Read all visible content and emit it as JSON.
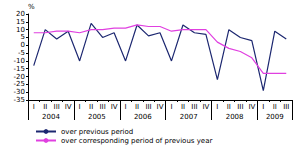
{
  "chart_data": {
    "type": "line",
    "y_label": "%",
    "categories": [
      "I",
      "II",
      "III",
      "IV",
      "I",
      "II",
      "III",
      "IV",
      "I",
      "II",
      "III",
      "IV",
      "I",
      "II",
      "III",
      "IV",
      "I",
      "II",
      "III",
      "IV",
      "I",
      "II",
      "III"
    ],
    "x_groups": [
      {
        "label": "2004",
        "count": 4
      },
      {
        "label": "2005",
        "count": 4
      },
      {
        "label": "2006",
        "count": 4
      },
      {
        "label": "2007",
        "count": 4
      },
      {
        "label": "2008",
        "count": 4
      },
      {
        "label": "2009",
        "count": 3
      }
    ],
    "series": [
      {
        "name": "over previous period",
        "color": "#1c2770",
        "marker": "none",
        "line_style": "solid",
        "values": [
          -13,
          10,
          4,
          9,
          -10,
          14,
          5,
          8,
          -10,
          13,
          6,
          8,
          -10,
          13,
          8,
          7,
          -22,
          10,
          5,
          3,
          -29,
          9,
          4
        ]
      },
      {
        "name": "over corresponding period of previous year",
        "color": "#e040e0",
        "marker": "none",
        "line_style": "solid",
        "values": [
          8,
          8,
          9,
          9,
          8,
          10,
          10,
          11,
          11,
          13,
          12,
          12,
          9,
          10,
          10,
          10,
          2,
          -2,
          -4,
          -8,
          -18,
          -18,
          -18
        ]
      }
    ],
    "ylim": [
      -35,
      20
    ],
    "yticks": [
      -35,
      -30,
      -25,
      -20,
      -15,
      -10,
      -5,
      0,
      5,
      10,
      15,
      20
    ],
    "grid": false,
    "legend": "bottom"
  }
}
